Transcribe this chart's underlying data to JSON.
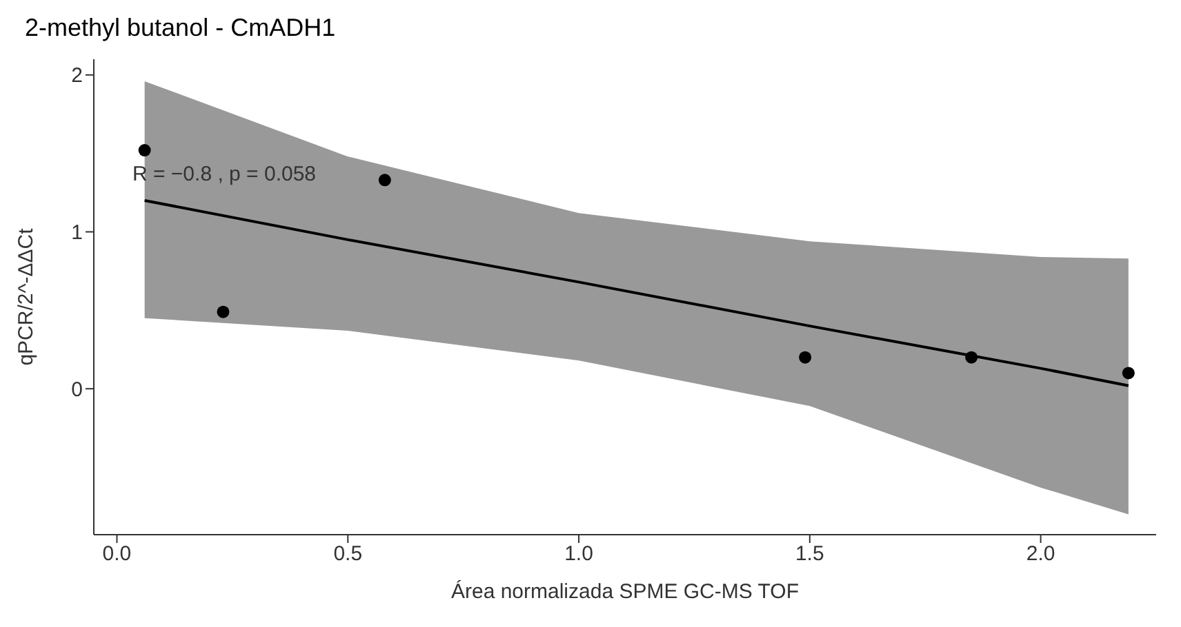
{
  "chart_data": {
    "type": "scatter",
    "title": "2-methyl butanol - CmADH1",
    "xlabel": "Área normalizada SPME GC-MS TOF",
    "ylabel": "qPCR/2^-ΔΔCt",
    "annotations": [
      "R = −0.8 , p = 0.058"
    ],
    "xlim": [
      -0.05,
      2.25
    ],
    "xticks": [
      {
        "value": 0,
        "label": "0.0"
      },
      0.5,
      {
        "value": 1,
        "label": "1.0"
      },
      1.5,
      {
        "value": 2,
        "label": "2.0"
      }
    ],
    "ylim": [
      -0.93,
      2.1
    ],
    "yticks": [
      0,
      1,
      2
    ],
    "series": [
      {
        "type": "line",
        "color": "#000000",
        "x": [
          0.06,
          0.5,
          1.0,
          1.5,
          2.0,
          2.19
        ],
        "values": [
          1.2,
          0.95,
          0.68,
          0.4,
          0.13,
          0.02
        ],
        "lower": [
          0.45,
          0.37,
          0.18,
          -0.11,
          -0.63,
          -0.8
        ],
        "upper": [
          1.96,
          1.48,
          1.12,
          0.94,
          0.84,
          0.83
        ]
      },
      {
        "type": "scatter",
        "color": "#000000",
        "marker": "circle",
        "x": [
          0.06,
          0.23,
          0.58,
          1.49,
          1.85,
          2.19
        ],
        "values": [
          1.52,
          0.49,
          1.33,
          0.2,
          0.2,
          0.1
        ]
      }
    ]
  }
}
